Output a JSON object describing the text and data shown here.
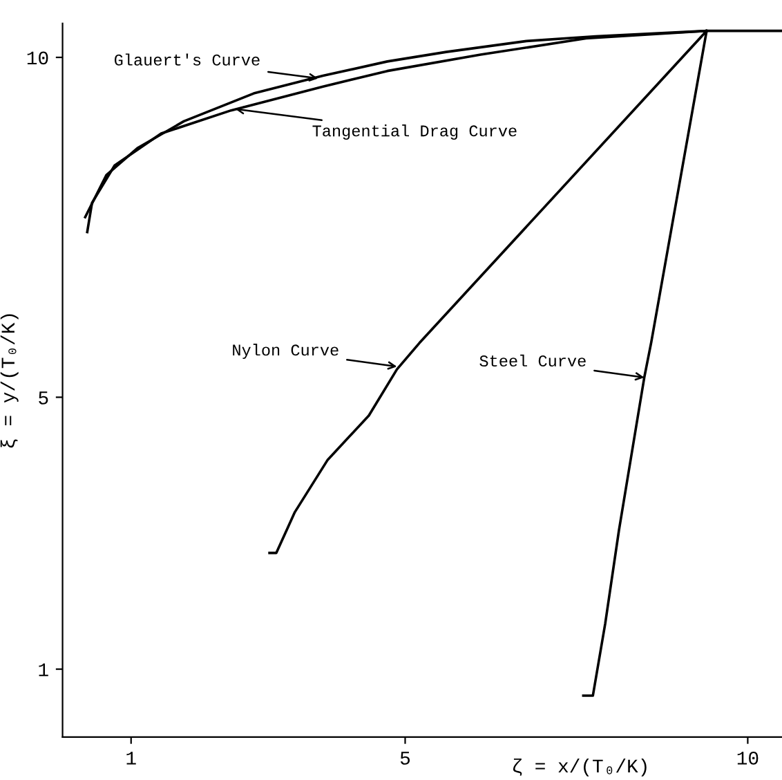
{
  "chart_data": {
    "type": "line",
    "xlabel": "ζ = x/(T₀/K)",
    "ylabel": "ξ = y/(T₀/K)",
    "xlim": [
      0,
      10.5
    ],
    "xticks": [
      1,
      5,
      10
    ],
    "ylim": [
      0,
      10.5
    ],
    "yticks": [
      1,
      5,
      10
    ],
    "grid": false,
    "legend": false,
    "marker": "none",
    "line_style": "solid",
    "series": [
      {
        "color": "#000000",
        "x": [
          0.33,
          0.64,
          1.1,
          1.77,
          2.79,
          3.8,
          4.74,
          5.6,
          6.77,
          7.78,
          9.4,
          10.5
        ],
        "values": [
          7.65,
          8.27,
          8.67,
          9.06,
          9.47,
          9.73,
          9.94,
          10.08,
          10.24,
          10.31,
          10.39,
          10.39
        ]
      },
      {
        "color": "#000000",
        "x": [
          0.36,
          0.43,
          0.76,
          1.44,
          2.46,
          3.8,
          4.74,
          6.1,
          7.64,
          9.4
        ],
        "values": [
          7.43,
          7.86,
          8.41,
          8.88,
          9.22,
          9.57,
          9.8,
          10.04,
          10.28,
          10.39
        ]
      },
      {
        "color": "#000000",
        "x": [
          3.02,
          3.12,
          3.39,
          3.87,
          4.47,
          4.88,
          5.21,
          9.4
        ],
        "values": [
          2.71,
          2.71,
          3.31,
          4.08,
          4.73,
          5.41,
          5.8,
          10.39
        ]
      },
      {
        "color": "#000000",
        "x": [
          7.6,
          7.74,
          7.92,
          8.12,
          8.49,
          8.59,
          9.4
        ],
        "values": [
          0.61,
          0.61,
          1.67,
          3.04,
          5.29,
          5.8,
          10.39
        ]
      }
    ],
    "annotations": [
      {
        "text": "Glauert's Curve",
        "x": 3.73,
        "y": 9.69
      },
      {
        "text": "Tangential Drag Curve",
        "x": 2.52,
        "y": 9.24
      },
      {
        "text": "Nylon Curve",
        "x": 4.88,
        "y": 5.45
      },
      {
        "text": "Steel Curve",
        "x": 8.49,
        "y": 5.29
      }
    ]
  }
}
